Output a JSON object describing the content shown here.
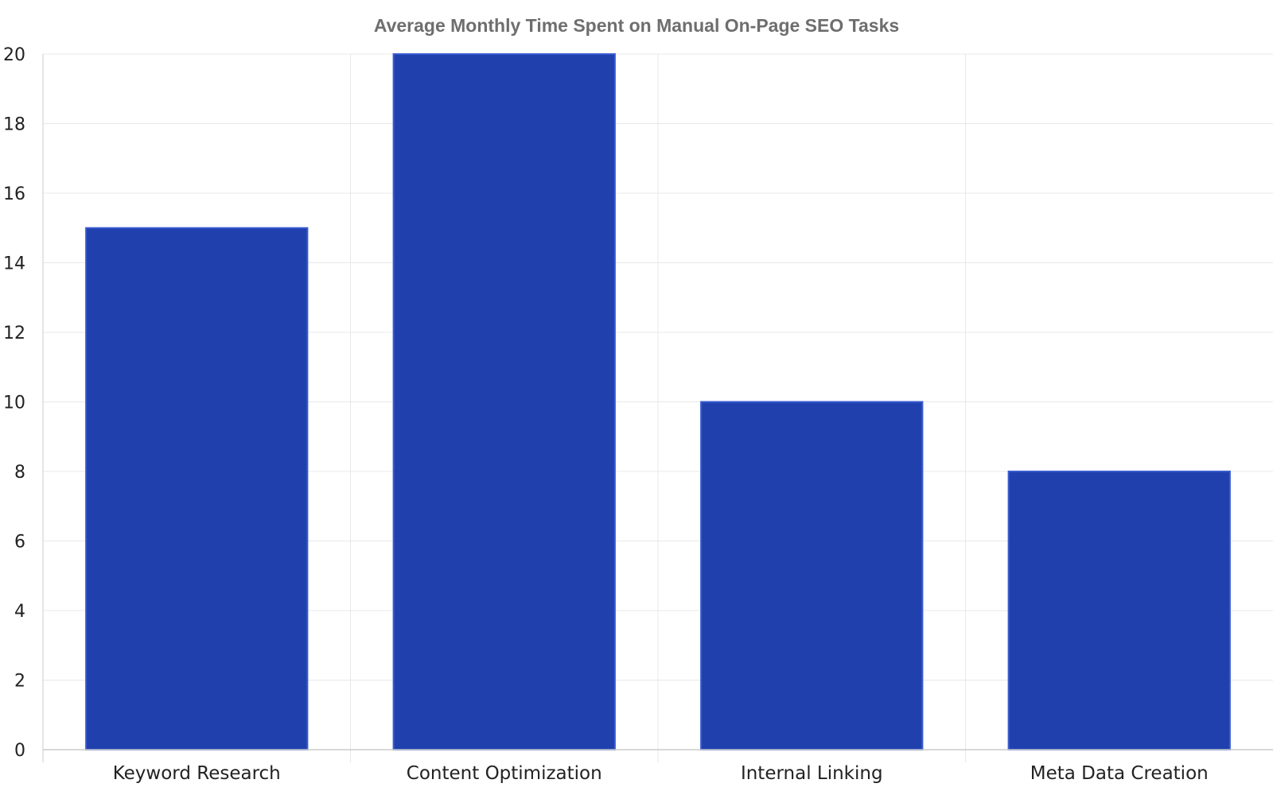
{
  "chart_data": {
    "type": "bar",
    "title": "Average Monthly Time Spent on Manual On-Page SEO Tasks",
    "categories": [
      "Keyword Research",
      "Content Optimization",
      "Internal Linking",
      "Meta Data Creation"
    ],
    "values": [
      15,
      20,
      10,
      8
    ],
    "ylim": [
      0,
      20
    ],
    "y_ticks": [
      0,
      2,
      4,
      6,
      8,
      10,
      12,
      14,
      16,
      18,
      20
    ],
    "grid": true,
    "colors": {
      "bar": "#1f40ad",
      "bar_edge": "#3a5bd0",
      "grid": "#e8e8e8",
      "axis": "#cccccc",
      "text": "#222222"
    }
  }
}
